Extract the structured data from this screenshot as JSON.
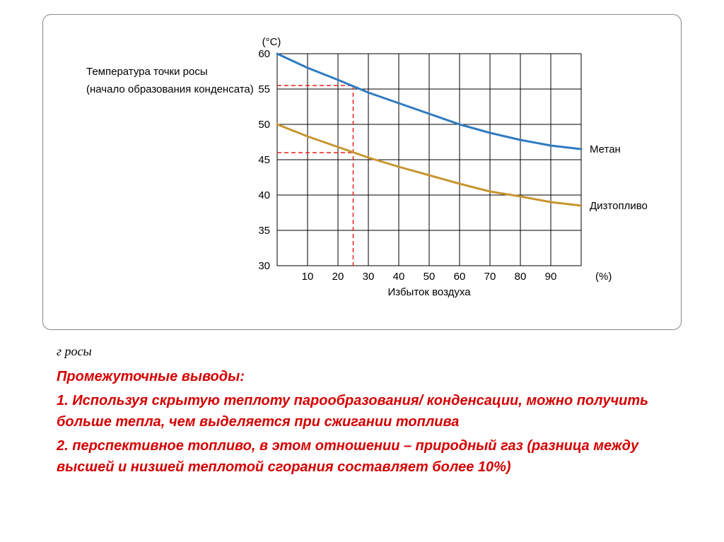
{
  "chart": {
    "type": "line",
    "y_axis_unit": "(°C)",
    "y_label_line1": "Температура  точки росы",
    "y_label_line2": "(начало образования конденсата)",
    "x_axis_unit": "(%)",
    "x_label": "Избыток воздуха",
    "y_ticks": [
      30,
      35,
      40,
      45,
      50,
      55,
      60
    ],
    "x_ticks": [
      10,
      20,
      30,
      40,
      50,
      60,
      70,
      80,
      90
    ],
    "ylim": [
      30,
      60
    ],
    "xlim": [
      0,
      100
    ],
    "grid_color": "#000000",
    "grid_width": 1,
    "background_color": "#ffffff",
    "series": [
      {
        "name": "Метан",
        "label": "Метан",
        "color": "#2f7bbf",
        "line_width": 3,
        "points": [
          {
            "x": 0,
            "y": 60.0
          },
          {
            "x": 10,
            "y": 58.0
          },
          {
            "x": 20,
            "y": 56.3
          },
          {
            "x": 30,
            "y": 54.5
          },
          {
            "x": 40,
            "y": 53.0
          },
          {
            "x": 50,
            "y": 51.5
          },
          {
            "x": 60,
            "y": 50.0
          },
          {
            "x": 70,
            "y": 48.8
          },
          {
            "x": 80,
            "y": 47.8
          },
          {
            "x": 90,
            "y": 47.0
          },
          {
            "x": 100,
            "y": 46.5
          }
        ]
      },
      {
        "name": "Дизтопливо",
        "label": "Дизтопливо",
        "color": "#c8952f",
        "line_width": 3,
        "points": [
          {
            "x": 0,
            "y": 50.0
          },
          {
            "x": 10,
            "y": 48.3
          },
          {
            "x": 20,
            "y": 46.8
          },
          {
            "x": 30,
            "y": 45.3
          },
          {
            "x": 40,
            "y": 44.0
          },
          {
            "x": 50,
            "y": 42.8
          },
          {
            "x": 60,
            "y": 41.6
          },
          {
            "x": 70,
            "y": 40.5
          },
          {
            "x": 80,
            "y": 39.8
          },
          {
            "x": 90,
            "y": 39.0
          },
          {
            "x": 100,
            "y": 38.5
          }
        ]
      }
    ],
    "reference_lines": {
      "color": "#e5201a",
      "dash": "6,4",
      "width": 1.5,
      "x_ref": 25,
      "y_ref_methane": 55.5,
      "y_ref_diesel": 46.0
    }
  },
  "truncated_text": "г росы",
  "conclusions": {
    "title": "Промежуточные выводы:",
    "item1": "1. Используя скрытую теплоту парообразования/ конденсации, можно получить больше тепла, чем выделяется при сжигании топлива",
    "item2": "2.  перспективное топливо, в этом отношении – природный газ (разница между высшей и низшей теплотой сгорания составляет более 10%)"
  }
}
